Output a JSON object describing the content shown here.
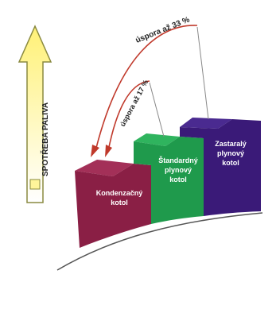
{
  "axis": {
    "label": "SPOTŘEBA PALIVA"
  },
  "arrows": {
    "outer_label": "úspora až 33 %",
    "inner_label": "úspora až 17 %"
  },
  "boilers": [
    {
      "label_line1": "Kondenzačný",
      "label_line2": "kotol",
      "color": "#8a1f45",
      "top_color": "#a33058"
    },
    {
      "label_line1": "Štandardný",
      "label_line2": "plynový",
      "label_line3": "kotol",
      "color": "#1f9a4c",
      "top_color": "#2fb45e"
    },
    {
      "label_line1": "Zastaralý",
      "label_line2": "plynový",
      "label_line3": "kotol",
      "color": "#3a1a78",
      "top_color": "#4a2a90"
    }
  ],
  "colors": {
    "axis_arrow_fill": "#fff59a",
    "axis_arrow_stroke": "#8a8a40",
    "curve_arrow": "#c0392b",
    "leader_line": "#888888",
    "ground_line": "#555555"
  }
}
